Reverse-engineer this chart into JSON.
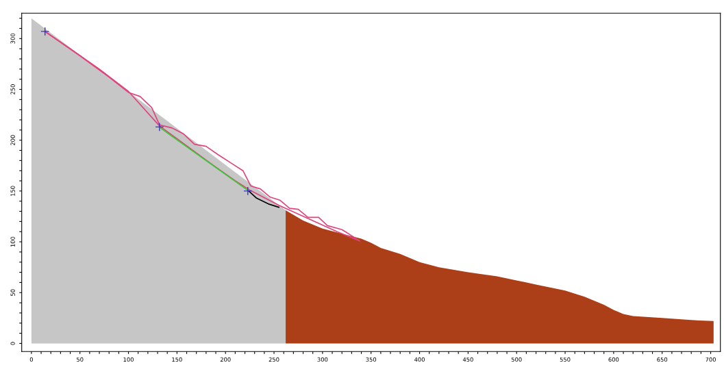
{
  "chart_data": {
    "type": "area",
    "series": [
      {
        "color": "#c6c6c6",
        "x": [
          0,
          262
        ],
        "values": [
          320,
          131
        ]
      },
      {
        "color": "#ac3e18",
        "x": [
          262,
          280,
          300,
          320,
          340,
          350,
          360,
          380,
          400,
          420,
          450,
          480,
          500,
          520,
          550,
          570,
          590,
          600,
          610,
          620,
          650,
          680,
          703
        ],
        "values": [
          131,
          121,
          113,
          108,
          103,
          99,
          94,
          88,
          80,
          75,
          70,
          66,
          62,
          58,
          52,
          46,
          38,
          33,
          29,
          27,
          25,
          23,
          22
        ]
      },
      {
        "type": "line",
        "color": "#e0447c",
        "x": [
          14,
          40,
          70,
          100,
          132,
          155,
          185,
          210,
          225,
          255,
          285,
          315,
          338
        ],
        "values": [
          307,
          290,
          270,
          248,
          214,
          198,
          177,
          160,
          151,
          136,
          123,
          110,
          101
        ]
      },
      {
        "type": "line",
        "color": "#e0447c",
        "x": [
          14,
          50,
          80,
          100,
          112,
          124,
          132,
          145,
          157,
          168,
          180,
          192,
          205,
          218,
          226,
          236,
          246,
          256,
          266,
          275,
          285,
          296,
          305,
          320,
          330,
          338
        ],
        "values": [
          307,
          283,
          262,
          247,
          243,
          232,
          215,
          212,
          206,
          196,
          194,
          186,
          178,
          170,
          155,
          152,
          144,
          141,
          133,
          132,
          124,
          124,
          116,
          112,
          106,
          101
        ]
      },
      {
        "type": "line",
        "color": "#33cc33",
        "x": [
          133,
          224
        ],
        "values": [
          212,
          150
        ]
      },
      {
        "type": "line",
        "color": "#000000",
        "x": [
          224,
          232,
          245,
          255
        ],
        "values": [
          150,
          143,
          137,
          134
        ]
      },
      {
        "type": "scatter",
        "color": "#3333cc",
        "marker": "cross",
        "x": [
          14,
          132,
          223
        ],
        "values": [
          307,
          213,
          150
        ]
      }
    ],
    "xlim": [
      -10,
      710
    ],
    "ylim": [
      -8,
      325
    ],
    "xticks": [
      0,
      {
        "value": 10,
        "label": null
      },
      {
        "value": 20,
        "label": null
      },
      {
        "value": 30,
        "label": null
      },
      {
        "value": 40,
        "label": null
      },
      50,
      {
        "value": 60,
        "label": null
      },
      {
        "value": 70,
        "label": null
      },
      {
        "value": 80,
        "label": null
      },
      {
        "value": 90,
        "label": null
      },
      100,
      {
        "value": 110,
        "label": null
      },
      {
        "value": 120,
        "label": null
      },
      {
        "value": 130,
        "label": null
      },
      {
        "value": 140,
        "label": null
      },
      150,
      {
        "value": 160,
        "label": null
      },
      {
        "value": 170,
        "label": null
      },
      {
        "value": 180,
        "label": null
      },
      {
        "value": 190,
        "label": null
      },
      200,
      {
        "value": 210,
        "label": null
      },
      {
        "value": 220,
        "label": null
      },
      {
        "value": 230,
        "label": null
      },
      {
        "value": 240,
        "label": null
      },
      250,
      {
        "value": 260,
        "label": null
      },
      {
        "value": 270,
        "label": null
      },
      {
        "value": 280,
        "label": null
      },
      {
        "value": 290,
        "label": null
      },
      300,
      {
        "value": 310,
        "label": null
      },
      {
        "value": 320,
        "label": null
      },
      {
        "value": 330,
        "label": null
      },
      {
        "value": 340,
        "label": null
      },
      350,
      {
        "value": 360,
        "label": null
      },
      {
        "value": 370,
        "label": null
      },
      {
        "value": 380,
        "label": null
      },
      {
        "value": 390,
        "label": null
      },
      400,
      {
        "value": 410,
        "label": null
      },
      {
        "value": 420,
        "label": null
      },
      {
        "value": 430,
        "label": null
      },
      {
        "value": 440,
        "label": null
      },
      450,
      {
        "value": 460,
        "label": null
      },
      {
        "value": 470,
        "label": null
      },
      {
        "value": 480,
        "label": null
      },
      {
        "value": 490,
        "label": null
      },
      500,
      {
        "value": 510,
        "label": null
      },
      {
        "value": 520,
        "label": null
      },
      {
        "value": 530,
        "label": null
      },
      {
        "value": 540,
        "label": null
      },
      550,
      {
        "value": 560,
        "label": null
      },
      {
        "value": 570,
        "label": null
      },
      {
        "value": 580,
        "label": null
      },
      {
        "value": 590,
        "label": null
      },
      600,
      {
        "value": 610,
        "label": null
      },
      {
        "value": 620,
        "label": null
      },
      {
        "value": 630,
        "label": null
      },
      {
        "value": 640,
        "label": null
      },
      650,
      {
        "value": 660,
        "label": null
      },
      {
        "value": 670,
        "label": null
      },
      {
        "value": 680,
        "label": null
      },
      {
        "value": 690,
        "label": null
      },
      700
    ],
    "yticks": [
      0,
      {
        "value": 10,
        "label": null
      },
      {
        "value": 20,
        "label": null
      },
      {
        "value": 30,
        "label": null
      },
      {
        "value": 40,
        "label": null
      },
      50,
      {
        "value": 60,
        "label": null
      },
      {
        "value": 70,
        "label": null
      },
      {
        "value": 80,
        "label": null
      },
      {
        "value": 90,
        "label": null
      },
      100,
      {
        "value": 110,
        "label": null
      },
      {
        "value": 120,
        "label": null
      },
      {
        "value": 130,
        "label": null
      },
      {
        "value": 140,
        "label": null
      },
      150,
      {
        "value": 160,
        "label": null
      },
      {
        "value": 170,
        "label": null
      },
      {
        "value": 180,
        "label": null
      },
      {
        "value": 190,
        "label": null
      },
      200,
      {
        "value": 210,
        "label": null
      },
      {
        "value": 220,
        "label": null
      },
      {
        "value": 230,
        "label": null
      },
      {
        "value": 240,
        "label": null
      },
      250,
      {
        "value": 260,
        "label": null
      },
      {
        "value": 270,
        "label": null
      },
      {
        "value": 280,
        "label": null
      },
      {
        "value": 290,
        "label": null
      },
      300,
      {
        "value": 310,
        "label": null
      },
      {
        "value": 320,
        "label": null
      }
    ]
  }
}
